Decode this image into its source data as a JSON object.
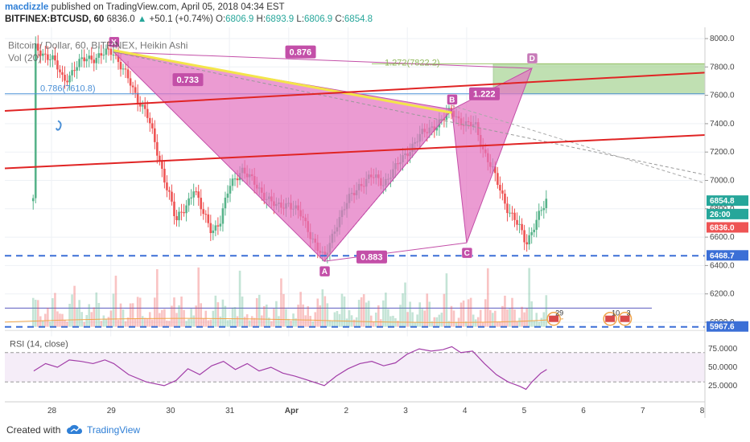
{
  "header": {
    "author": "macdizzle",
    "published_text": "published on TradingView.com, April 05, 2018 04:34 EST",
    "symbol": "BITFINEX:BTCUSD, 60",
    "last": "6836.0",
    "change_arrow": "▲",
    "change": "+50.1 (+0.74%)",
    "o_label": "O:",
    "o": "6806.9",
    "h_label": "H:",
    "h": "6893.9",
    "l_label": "L:",
    "l": "6806.9",
    "c_label": "C:",
    "c": "6854.8"
  },
  "footer": {
    "created_with": "Created with",
    "brand": "TradingView"
  },
  "colors": {
    "bull": "#57b38a",
    "bear": "#ee5454",
    "pattern_fill": "#e374c0",
    "pattern_stroke": "#c34fa8",
    "target_box": "#9fd08a",
    "red_line": "#e02424",
    "blue_dash": "#3b6fd6",
    "fib_blue": "#4a8fd6",
    "yellow": "#f3e54a",
    "rsi_line": "#a23ea8"
  },
  "chart_data": {
    "type": "candlestick",
    "title": "Bitcoin / Dollar, 60, BITFINEX, Heikin Ashi",
    "volume_label": "Vol (20)",
    "rsi_label": "RSI (14, close)",
    "x_ticks": [
      "28",
      "29",
      "30",
      "31",
      "Apr",
      "2",
      "3",
      "4",
      "5",
      "6",
      "7",
      "8"
    ],
    "y_ticks": [
      "8000.0",
      "7800.0",
      "7600.0",
      "7400.0",
      "7200.0",
      "7000.0",
      "6800.0",
      "6600.0",
      "6400.0",
      "6200.0",
      "6000.0"
    ],
    "rsi_ticks": [
      "75.0000",
      "50.0000",
      "25.0000"
    ],
    "harmonic_points": {
      "X": {
        "label": "X",
        "day": 29.05,
        "price": 7905
      },
      "A": {
        "label": "A",
        "day": 32.6,
        "price": 6430
      },
      "B": {
        "label": "B",
        "day": 34.75,
        "price": 7500
      },
      "C": {
        "label": "C",
        "day": 35.0,
        "price": 6560
      },
      "D": {
        "label": "D",
        "day": 36.1,
        "price": 7790
      }
    },
    "pattern_ratios": [
      {
        "text": "0.733",
        "day": 30.3,
        "price": 7705
      },
      {
        "text": "0.876",
        "day": 32.2,
        "price": 7900
      },
      {
        "text": "0.883",
        "day": 33.4,
        "price": 6455
      },
      {
        "text": "1.222",
        "day": 35.3,
        "price": 7605
      }
    ],
    "fib_label": "0.786(7610.8)",
    "fib_target_label": "1.272(7822.2)",
    "price_tags": [
      {
        "text": "6854.8",
        "price": 6854.8,
        "color": "#26a69a"
      },
      {
        "text": "26:00",
        "price": 6760,
        "color": "#26a69a"
      },
      {
        "text": "6836.0",
        "price": 6666,
        "color": "#ee5454"
      },
      {
        "text": "6468.7",
        "price": 6468.7,
        "color": "#3b6fd6"
      },
      {
        "text": "5967.6",
        "price": 5967.6,
        "color": "#3b6fd6"
      }
    ],
    "event_markers": [
      "29",
      "10",
      "3"
    ],
    "key_levels": {
      "support_dash": 6468.7,
      "volume_dash": 5967.6,
      "fib_786": 7610.8,
      "fib_1272": 7822.2
    },
    "price_path": [
      [
        27.7,
        7930
      ],
      [
        28.0,
        7870
      ],
      [
        28.2,
        7700
      ],
      [
        28.4,
        7800
      ],
      [
        28.6,
        7860
      ],
      [
        28.8,
        7880
      ],
      [
        29.05,
        7905
      ],
      [
        29.2,
        7800
      ],
      [
        29.4,
        7600
      ],
      [
        29.6,
        7500
      ],
      [
        29.8,
        7150
      ],
      [
        30.0,
        6900
      ],
      [
        30.1,
        6700
      ],
      [
        30.25,
        6800
      ],
      [
        30.4,
        6960
      ],
      [
        30.55,
        6760
      ],
      [
        30.7,
        6650
      ],
      [
        30.85,
        6720
      ],
      [
        31.0,
        6950
      ],
      [
        31.2,
        7090
      ],
      [
        31.4,
        6980
      ],
      [
        31.6,
        6900
      ],
      [
        31.8,
        6800
      ],
      [
        32.0,
        6850
      ],
      [
        32.2,
        6750
      ],
      [
        32.4,
        6600
      ],
      [
        32.6,
        6430
      ],
      [
        32.8,
        6700
      ],
      [
        33.0,
        6850
      ],
      [
        33.2,
        6980
      ],
      [
        33.4,
        7020
      ],
      [
        33.6,
        6990
      ],
      [
        33.8,
        7080
      ],
      [
        34.0,
        7210
      ],
      [
        34.2,
        7300
      ],
      [
        34.4,
        7380
      ],
      [
        34.6,
        7420
      ],
      [
        34.75,
        7500
      ],
      [
        34.9,
        7420
      ],
      [
        35.0,
        7380
      ],
      [
        35.15,
        7390
      ],
      [
        35.3,
        7200
      ],
      [
        35.5,
        7000
      ],
      [
        35.7,
        6800
      ],
      [
        35.9,
        6650
      ],
      [
        36.0,
        6560
      ],
      [
        36.15,
        6700
      ],
      [
        36.3,
        6806
      ],
      [
        36.35,
        6854
      ]
    ],
    "rsi_path": [
      [
        27.7,
        45
      ],
      [
        27.9,
        55
      ],
      [
        28.1,
        50
      ],
      [
        28.3,
        60
      ],
      [
        28.5,
        58
      ],
      [
        28.7,
        55
      ],
      [
        28.9,
        60
      ],
      [
        29.05,
        55
      ],
      [
        29.3,
        40
      ],
      [
        29.6,
        30
      ],
      [
        29.9,
        25
      ],
      [
        30.1,
        32
      ],
      [
        30.3,
        48
      ],
      [
        30.5,
        40
      ],
      [
        30.7,
        52
      ],
      [
        30.9,
        58
      ],
      [
        31.1,
        47
      ],
      [
        31.3,
        55
      ],
      [
        31.5,
        45
      ],
      [
        31.7,
        50
      ],
      [
        31.9,
        42
      ],
      [
        32.1,
        38
      ],
      [
        32.3,
        33
      ],
      [
        32.6,
        25
      ],
      [
        32.8,
        38
      ],
      [
        33.0,
        48
      ],
      [
        33.2,
        55
      ],
      [
        33.4,
        58
      ],
      [
        33.6,
        52
      ],
      [
        33.8,
        56
      ],
      [
        34.0,
        68
      ],
      [
        34.2,
        75
      ],
      [
        34.4,
        72
      ],
      [
        34.6,
        74
      ],
      [
        34.75,
        78
      ],
      [
        34.9,
        70
      ],
      [
        35.1,
        72
      ],
      [
        35.3,
        55
      ],
      [
        35.5,
        40
      ],
      [
        35.7,
        30
      ],
      [
        35.9,
        24
      ],
      [
        36.0,
        20
      ],
      [
        36.1,
        30
      ],
      [
        36.25,
        42
      ],
      [
        36.35,
        47
      ]
    ]
  }
}
